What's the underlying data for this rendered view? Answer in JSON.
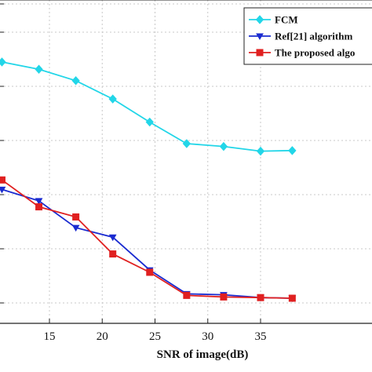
{
  "chart_data": {
    "type": "line",
    "xlabel": "SNR of image(dB)",
    "ylabel": "",
    "xlim": [
      10.5,
      38
    ],
    "ylim": [
      0,
      1
    ],
    "x_ticks": [
      15,
      20,
      25,
      30,
      35
    ],
    "grid": true,
    "legend_position": "top-right",
    "series": [
      {
        "name": "FCM",
        "color": "#22d6e8",
        "marker": "diamond",
        "x": [
          10.5,
          14,
          17.5,
          21,
          24.5,
          28,
          31.5,
          35,
          38
        ],
        "y": [
          0.835,
          0.812,
          0.776,
          0.718,
          0.645,
          0.577,
          0.568,
          0.553,
          0.555
        ]
      },
      {
        "name": "Ref[21] algorithm",
        "color": "#1a2bd0",
        "marker": "triangle-down",
        "x": [
          10.5,
          14,
          17.5,
          21,
          24.5,
          28,
          31.5,
          35,
          38
        ],
        "y": [
          0.432,
          0.396,
          0.311,
          0.281,
          0.177,
          0.102,
          0.099,
          0.09,
          0.088
        ]
      },
      {
        "name": "The proposed algo",
        "color": "#e02020",
        "marker": "square",
        "x": [
          10.5,
          14,
          17.5,
          21,
          24.5,
          28,
          31.5,
          35,
          38
        ],
        "y": [
          0.462,
          0.377,
          0.345,
          0.228,
          0.17,
          0.097,
          0.092,
          0.09,
          0.088
        ]
      }
    ]
  }
}
